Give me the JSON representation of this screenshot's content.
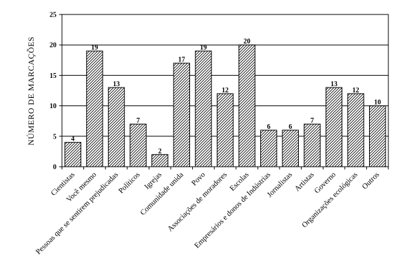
{
  "chart_data": {
    "type": "bar",
    "title": "",
    "xlabel": "",
    "ylabel": "NÚMERO DE MARCAÇÕES",
    "ylim": [
      0,
      25
    ],
    "yticks": [
      0,
      5,
      10,
      15,
      20,
      25
    ],
    "grid": true,
    "categories": [
      "Cientistas",
      "Você mesmo",
      "Pessoas que se sentirem prejudicadas",
      "Políticos",
      "Igrejas",
      "Comunidade unida",
      "Povo",
      "Associações de moradores",
      "Escolas",
      "Empresários e donos de Indústrias",
      "Jornalistas",
      "Artistas",
      "Governo",
      "Organizações ecológicas",
      "Outros"
    ],
    "values": [
      4,
      19,
      13,
      7,
      2,
      17,
      19,
      12,
      20,
      6,
      6,
      7,
      13,
      12,
      10
    ],
    "bar_pattern": "diagonal-hatch",
    "colors": {
      "bar_stroke": "#000000",
      "hatch": "#000000",
      "background": "#ffffff"
    }
  }
}
